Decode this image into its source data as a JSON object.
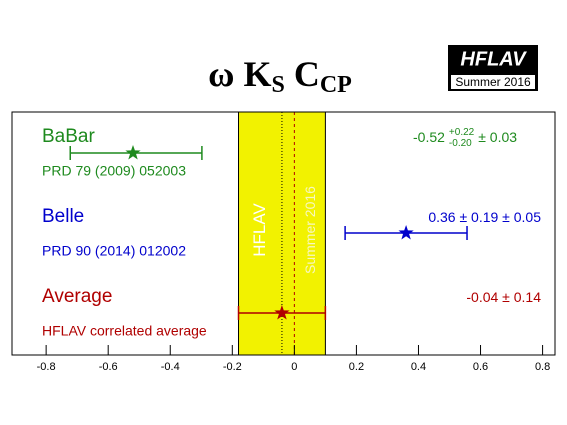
{
  "chart_data": {
    "type": "forest",
    "title_parts": [
      "ω K",
      "S",
      " C",
      "CP"
    ],
    "logo": {
      "text": "HFLAV",
      "subtitle": "Summer 2016"
    },
    "band_labels": [
      "HFLAV",
      "Summer 2016"
    ],
    "xlim": [
      -0.91,
      0.84
    ],
    "xticks": [
      -0.8,
      -0.6,
      -0.4,
      -0.2,
      0,
      0.2,
      0.4,
      0.6,
      0.8
    ],
    "series": [
      {
        "name": "BaBar",
        "reference": "PRD 79 (2009) 052003",
        "color": "#1e8a1e",
        "value": -0.52,
        "err_plus": 0.22,
        "err_minus": 0.2,
        "syst": 0.03,
        "value_labels": [
          "-0.52",
          "+0.22",
          "-0.20",
          "± 0.03"
        ]
      },
      {
        "name": "Belle",
        "reference": "PRD 90 (2014) 012002",
        "color": "#0000cc",
        "value": 0.36,
        "err_plus": 0.19,
        "err_minus": 0.19,
        "syst": 0.05,
        "value_labels": [
          "0.36 ± 0.19 ± 0.05"
        ]
      },
      {
        "name": "Average",
        "reference": "HFLAV correlated average",
        "color": "#b00000",
        "value": -0.04,
        "err_plus": 0.14,
        "err_minus": 0.14,
        "value_labels": [
          "-0.04 ± 0.14"
        ],
        "average": true
      }
    ]
  }
}
